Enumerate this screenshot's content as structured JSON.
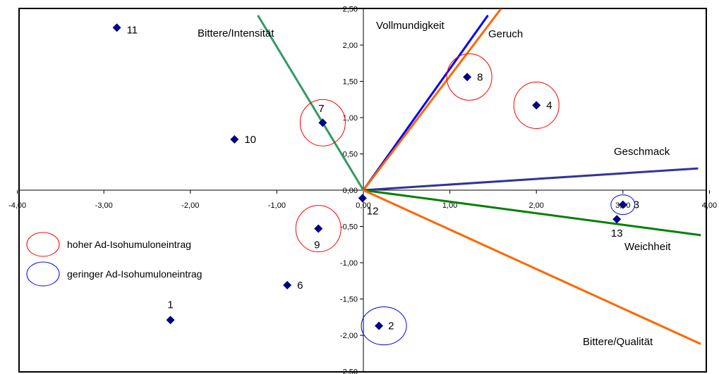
{
  "chart_data": {
    "type": "scatter",
    "title": "",
    "xlabel": "",
    "ylabel": "",
    "xlim": [
      -4,
      4
    ],
    "ylim": [
      -2.5,
      2.5
    ],
    "x_ticks": [
      "-4,00",
      "-3,00",
      "-2,00",
      "-1,00",
      "0,00",
      "1,00",
      "2,00",
      "3,00",
      "4,00"
    ],
    "y_ticks": [
      "2,50",
      "2,00",
      "1,50",
      "1,00",
      "0,50",
      "0,00",
      "-0,50",
      "-1,00",
      "-1,50",
      "-2,00",
      "-2,50"
    ],
    "grid": false,
    "marker_color": "#000080",
    "points": [
      {
        "label": "1",
        "x": -2.23,
        "y": -1.79
      },
      {
        "label": "2",
        "x": 0.18,
        "y": -1.87
      },
      {
        "label": "3",
        "x": 3.0,
        "y": -0.2
      },
      {
        "label": "4",
        "x": 2.0,
        "y": 1.17
      },
      {
        "label": "6",
        "x": -0.88,
        "y": -1.31
      },
      {
        "label": "7",
        "x": -0.47,
        "y": 0.93
      },
      {
        "label": "8",
        "x": 1.2,
        "y": 1.56
      },
      {
        "label": "9",
        "x": -0.52,
        "y": -0.53
      },
      {
        "label": "10",
        "x": -1.49,
        "y": 0.7
      },
      {
        "label": "11",
        "x": -2.85,
        "y": 2.24
      },
      {
        "label": "12",
        "x": -0.01,
        "y": -0.11
      },
      {
        "label": "13",
        "x": 2.93,
        "y": -0.4
      }
    ],
    "vectors": [
      {
        "label": "Bittere/Intensität",
        "x": -1.22,
        "y": 2.41,
        "color": "#339966"
      },
      {
        "label": "Vollmundigkeit",
        "x": 1.44,
        "y": 2.41,
        "color": "#0000ff"
      },
      {
        "label": "Geruch",
        "x": 1.59,
        "y": 2.5,
        "color": "#ff6600"
      },
      {
        "label": "Geschmack",
        "x": 3.87,
        "y": 0.3,
        "color": "#333399"
      },
      {
        "label": "Weichheit",
        "x": 3.9,
        "y": -0.62,
        "color": "#008000"
      },
      {
        "label": "Bittere/Qualität",
        "x": 3.9,
        "y": -2.12,
        "color": "#ff6600"
      }
    ],
    "highlights": [
      {
        "point": "7",
        "group": "high"
      },
      {
        "point": "8",
        "group": "high"
      },
      {
        "point": "4",
        "group": "high"
      },
      {
        "point": "9",
        "group": "high"
      },
      {
        "point": "3",
        "group": "low"
      },
      {
        "point": "2",
        "group": "low"
      }
    ],
    "legend": [
      {
        "label": "hoher Ad-Isohumuloneintrag",
        "color": "#ff0000",
        "group": "high"
      },
      {
        "label": "geringer Ad-Isohumuloneintrag",
        "color": "#0000ff",
        "group": "low"
      }
    ],
    "legend_position": "left"
  }
}
